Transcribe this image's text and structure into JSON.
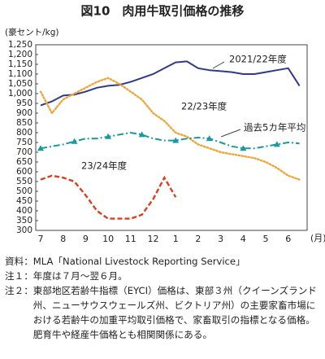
{
  "chart_data": {
    "type": "line",
    "title": "図10　肉用牛取引価格の推移",
    "y_label": "(豪セント/kg)",
    "x_label": "(月)",
    "categories": [
      "7",
      null,
      "8",
      null,
      "9",
      null,
      "10",
      null,
      "11",
      null,
      "12",
      null,
      "1",
      null,
      "2",
      null,
      "3",
      null,
      "4",
      null,
      "5",
      null,
      "6",
      null
    ],
    "ylim": [
      300,
      1250
    ],
    "yticks": [
      300,
      350,
      400,
      450,
      500,
      550,
      600,
      650,
      700,
      750,
      800,
      850,
      900,
      950,
      {
        "value": 1000,
        "label": "1,000"
      },
      {
        "value": 1050,
        "label": "1,050"
      },
      {
        "value": 1100,
        "label": "1,100"
      },
      {
        "value": 1150,
        "label": "1,150"
      },
      {
        "value": 1200,
        "label": "1,200"
      },
      {
        "value": 1250,
        "label": "1,250"
      }
    ],
    "grid": false,
    "series": [
      {
        "name": "2021/22年度",
        "color": "#2e3a8c",
        "dash": "solid",
        "values": [
          940,
          960,
          990,
          995,
          1010,
          1030,
          1040,
          1045,
          1060,
          1080,
          1100,
          1130,
          1160,
          1165,
          1130,
          1120,
          1115,
          1110,
          1100,
          1100,
          1110,
          1120,
          1130,
          1040
        ]
      },
      {
        "name": "22/23年度",
        "color": "#eea638",
        "dash": "dotted",
        "values": [
          1010,
          900,
          970,
          1000,
          1030,
          1060,
          1080,
          1050,
          1010,
          970,
          900,
          860,
          800,
          780,
          740,
          720,
          700,
          690,
          680,
          670,
          650,
          620,
          580,
          560
        ]
      },
      {
        "name": "過去5カ年平均",
        "color": "#1a9aa0",
        "dash": "dashdot",
        "values": [
          720,
          730,
          740,
          755,
          770,
          770,
          780,
          790,
          800,
          790,
          770,
          760,
          760,
          770,
          775,
          770,
          750,
          730,
          720,
          720,
          730,
          740,
          750,
          745
        ]
      },
      {
        "name": "23/24年度",
        "color": "#d94020",
        "dash": "dashed",
        "values": [
          560,
          580,
          570,
          550,
          480,
          400,
          360,
          360,
          360,
          380,
          460,
          570,
          470,
          null,
          null,
          null,
          null,
          null,
          null,
          null,
          null,
          null,
          null,
          null
        ]
      }
    ]
  },
  "notes": [
    {
      "label": "資料：",
      "text": "MLA「National Livestock Reporting Service」"
    },
    {
      "label": "注１：",
      "text": "年度は７月～翌６月。"
    },
    {
      "label": "注２：",
      "text": "東部地区若齢牛指標（EYCI）価格は、東部３州（クイーンズランド州、ニューサウスウェールズ州、ビクトリア州）の主要家畜市場における若齢牛の加重平均取引価格で、家畜取引の指標となる価格。肥育牛や経産牛価格とも相関関係にある。"
    }
  ]
}
